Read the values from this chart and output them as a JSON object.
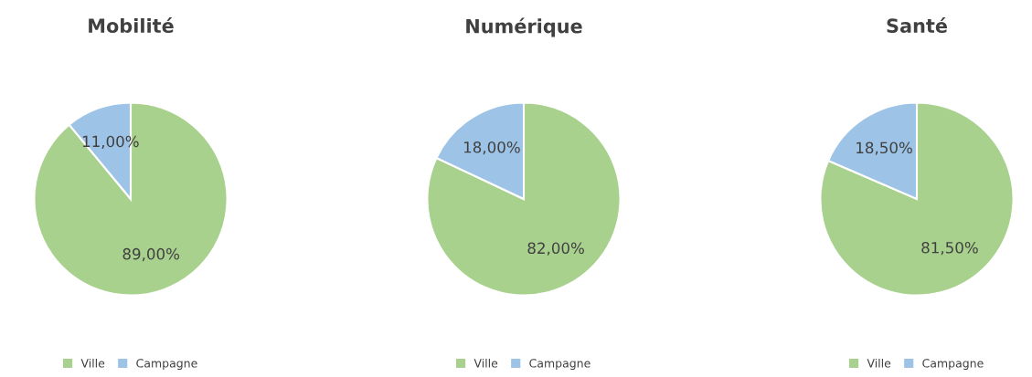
{
  "chart_data": [
    {
      "type": "pie",
      "title": "Mobilité",
      "categories": [
        "Ville",
        "Campagne"
      ],
      "values": [
        89,
        11
      ],
      "colors": [
        "#a9d18e",
        "#9dc3e6"
      ],
      "value_labels": [
        "89,00%",
        "11,00%"
      ],
      "legend": "bottom"
    },
    {
      "type": "pie",
      "title": "Numérique",
      "categories": [
        "Ville",
        "Campagne"
      ],
      "values": [
        82,
        18
      ],
      "colors": [
        "#a9d18e",
        "#9dc3e6"
      ],
      "value_labels": [
        "82,00%",
        "18,00%"
      ],
      "legend": "bottom"
    },
    {
      "type": "pie",
      "title": "Santé",
      "categories": [
        "Ville",
        "Campagne"
      ],
      "values": [
        81.5,
        18.5
      ],
      "colors": [
        "#a9d18e",
        "#9dc3e6"
      ],
      "value_labels": [
        "81,50%",
        "18,50%"
      ],
      "legend": "bottom"
    }
  ]
}
